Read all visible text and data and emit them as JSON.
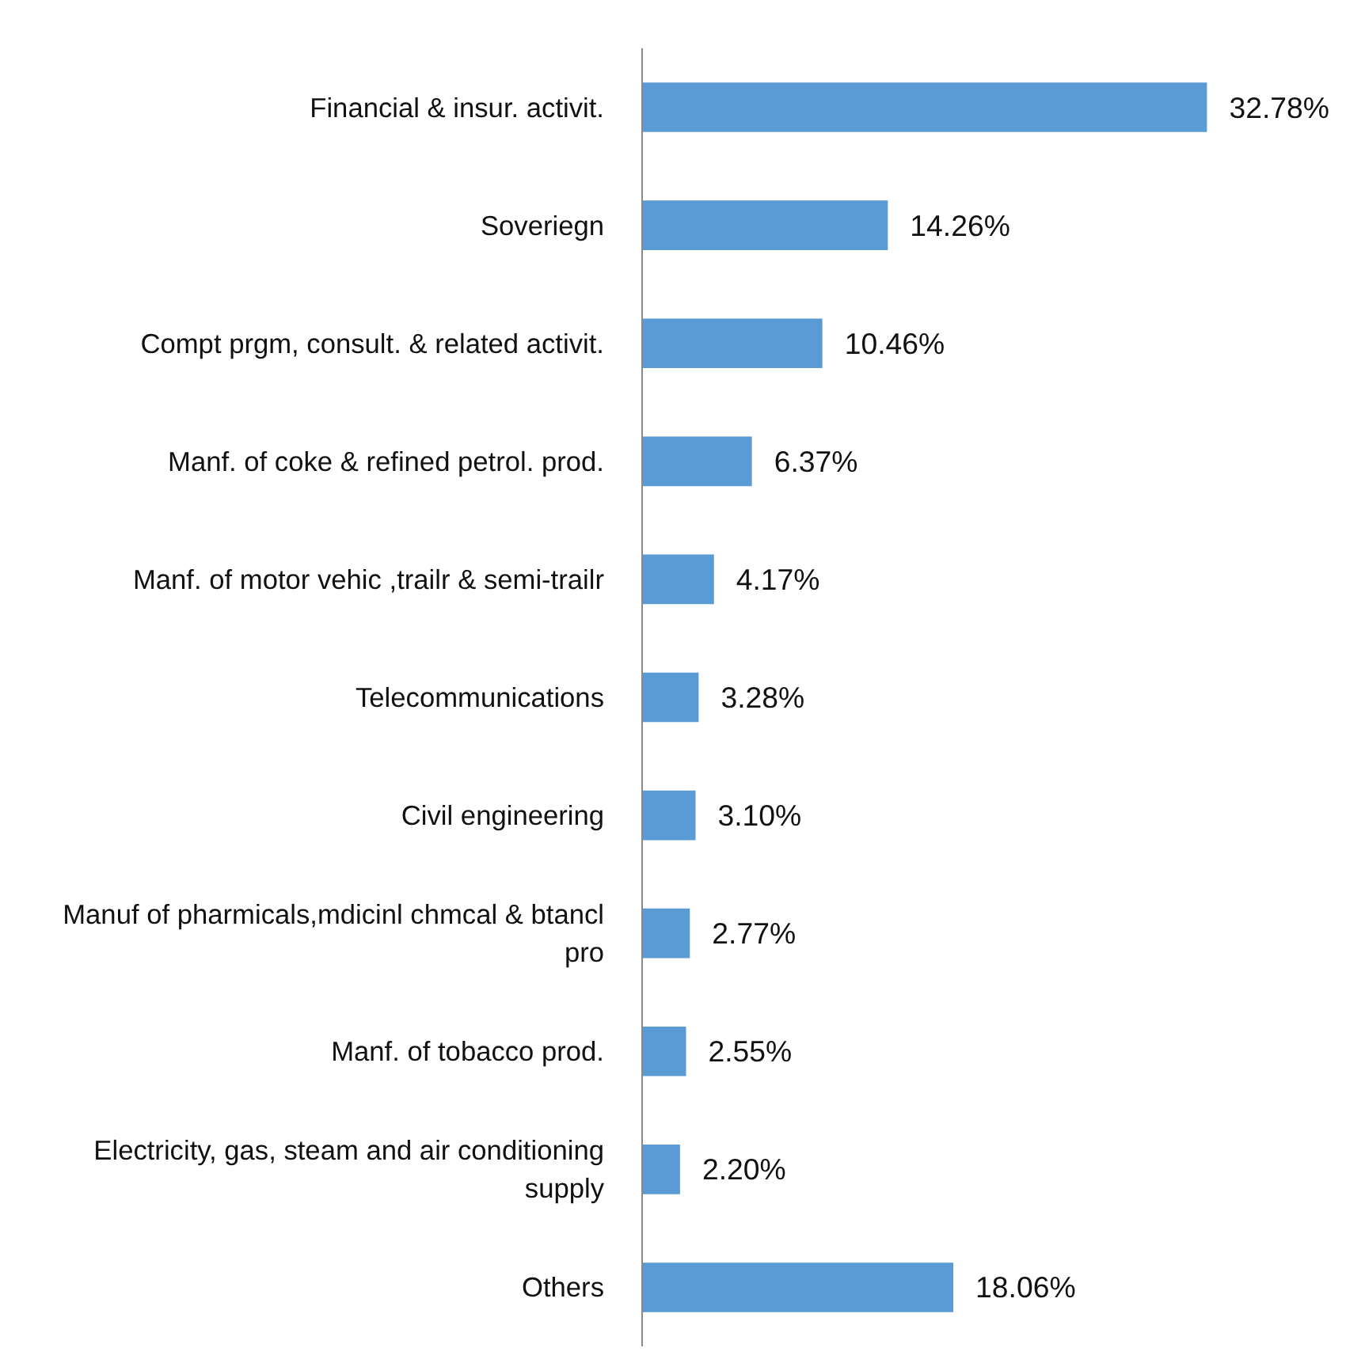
{
  "chart_data": {
    "type": "bar",
    "orientation": "horizontal",
    "color": "#5b9bd5",
    "categories": [
      "Financial & insur. activit.",
      "Soveriegn",
      "Compt prgm, consult. & related activit.",
      "Manf. of coke & refined petrol. prod.",
      "Manf. of motor vehic ,trailr & semi-trailr",
      "Telecommunications",
      "Civil engineering",
      "Manuf of pharmicals,mdicinl chmcal & btancl pro",
      "Manf. of tobacco prod.",
      "Electricity, gas, steam and air conditioning supply",
      "Others"
    ],
    "values": [
      32.78,
      14.26,
      10.46,
      6.37,
      4.17,
      3.28,
      3.1,
      2.77,
      2.55,
      2.2,
      18.06
    ],
    "value_labels": [
      "32.78%",
      "14.26%",
      "10.46%",
      "6.37%",
      "4.17%",
      "3.28%",
      "3.10%",
      "2.77%",
      "2.55%",
      "2.20%",
      "18.06%"
    ],
    "grid": false
  }
}
